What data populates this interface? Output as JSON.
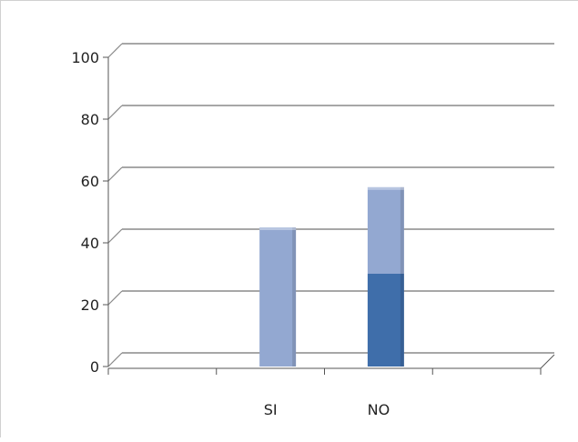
{
  "chart_data": {
    "type": "bar",
    "stacked": true,
    "categories": [
      "",
      "SI",
      "NO",
      ""
    ],
    "series": [
      {
        "values": [
          0,
          0,
          30,
          0
        ],
        "color": "#3f6eaa"
      },
      {
        "values": [
          0,
          45,
          28,
          0
        ],
        "color": "#93a8d1"
      }
    ],
    "yticks": [
      0,
      20,
      40,
      60,
      80,
      100
    ],
    "ylim": [
      0,
      100
    ],
    "grid": true,
    "legend": "none"
  }
}
